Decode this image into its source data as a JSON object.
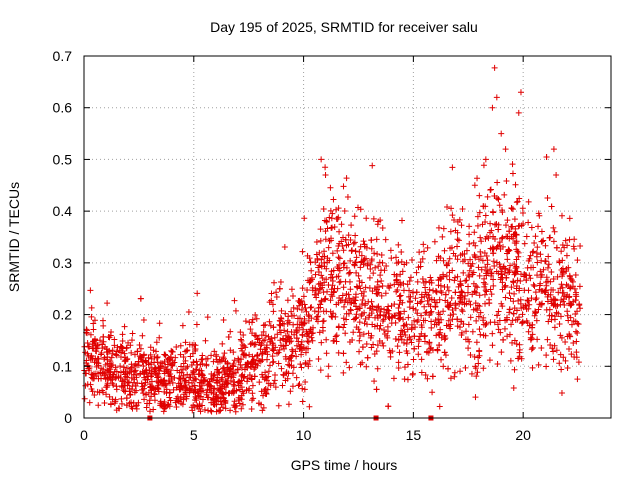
{
  "chart_data": {
    "type": "scatter",
    "title": "Day 195 of 2025, SRMTID for receiver salu",
    "xlabel": "GPS time / hours",
    "ylabel": "SRMTID / TECUs",
    "xlim": [
      0,
      24
    ],
    "ylim": [
      0,
      0.7
    ],
    "x_ticks": [
      0,
      5,
      10,
      15,
      20
    ],
    "x_tick_labels": [
      "0",
      "5",
      "10",
      "15",
      "20"
    ],
    "y_ticks": [
      0,
      0.1,
      0.2,
      0.3,
      0.4,
      0.5,
      0.6,
      0.7
    ],
    "y_tick_labels": [
      "0",
      "0.1",
      "0.2",
      "0.3",
      "0.4",
      "0.5",
      "0.6",
      "0.7"
    ],
    "grid": true,
    "marker": "plus",
    "color": "#e00000",
    "trend": [
      {
        "x": 0.0,
        "y": 0.12
      },
      {
        "x": 1.0,
        "y": 0.1
      },
      {
        "x": 2.0,
        "y": 0.08
      },
      {
        "x": 3.0,
        "y": 0.08
      },
      {
        "x": 4.0,
        "y": 0.08
      },
      {
        "x": 5.0,
        "y": 0.075
      },
      {
        "x": 6.0,
        "y": 0.06
      },
      {
        "x": 7.0,
        "y": 0.08
      },
      {
        "x": 8.0,
        "y": 0.11
      },
      {
        "x": 9.0,
        "y": 0.14
      },
      {
        "x": 10.0,
        "y": 0.17
      },
      {
        "x": 11.0,
        "y": 0.27
      },
      {
        "x": 12.0,
        "y": 0.26
      },
      {
        "x": 13.0,
        "y": 0.24
      },
      {
        "x": 14.0,
        "y": 0.22
      },
      {
        "x": 15.0,
        "y": 0.2
      },
      {
        "x": 16.0,
        "y": 0.2
      },
      {
        "x": 17.0,
        "y": 0.26
      },
      {
        "x": 18.0,
        "y": 0.27
      },
      {
        "x": 19.0,
        "y": 0.3
      },
      {
        "x": 20.0,
        "y": 0.26
      },
      {
        "x": 21.0,
        "y": 0.26
      },
      {
        "x": 22.0,
        "y": 0.22
      },
      {
        "x": 22.6,
        "y": 0.22
      }
    ],
    "spread": [
      {
        "x": 0.0,
        "y": 0.04
      },
      {
        "x": 6.0,
        "y": 0.03
      },
      {
        "x": 9.0,
        "y": 0.05
      },
      {
        "x": 11.0,
        "y": 0.08
      },
      {
        "x": 15.0,
        "y": 0.06
      },
      {
        "x": 18.0,
        "y": 0.09
      },
      {
        "x": 22.6,
        "y": 0.07
      }
    ],
    "peak_points": [
      {
        "x": 10.8,
        "y": 0.5
      },
      {
        "x": 11.0,
        "y": 0.47
      },
      {
        "x": 13.2,
        "y": 0.385
      },
      {
        "x": 13.4,
        "y": 0.38
      },
      {
        "x": 18.7,
        "y": 0.677
      },
      {
        "x": 18.8,
        "y": 0.62
      },
      {
        "x": 18.6,
        "y": 0.6
      },
      {
        "x": 19.0,
        "y": 0.55
      },
      {
        "x": 19.2,
        "y": 0.52
      },
      {
        "x": 19.9,
        "y": 0.63
      },
      {
        "x": 19.8,
        "y": 0.59
      },
      {
        "x": 21.4,
        "y": 0.52
      },
      {
        "x": 21.5,
        "y": 0.47
      },
      {
        "x": 18.3,
        "y": 0.5
      },
      {
        "x": 17.8,
        "y": 0.45
      }
    ],
    "zero_markers": [
      3.0,
      13.3,
      15.8
    ],
    "x_range_data": [
      0.0,
      22.6
    ],
    "n_points": 2600
  }
}
